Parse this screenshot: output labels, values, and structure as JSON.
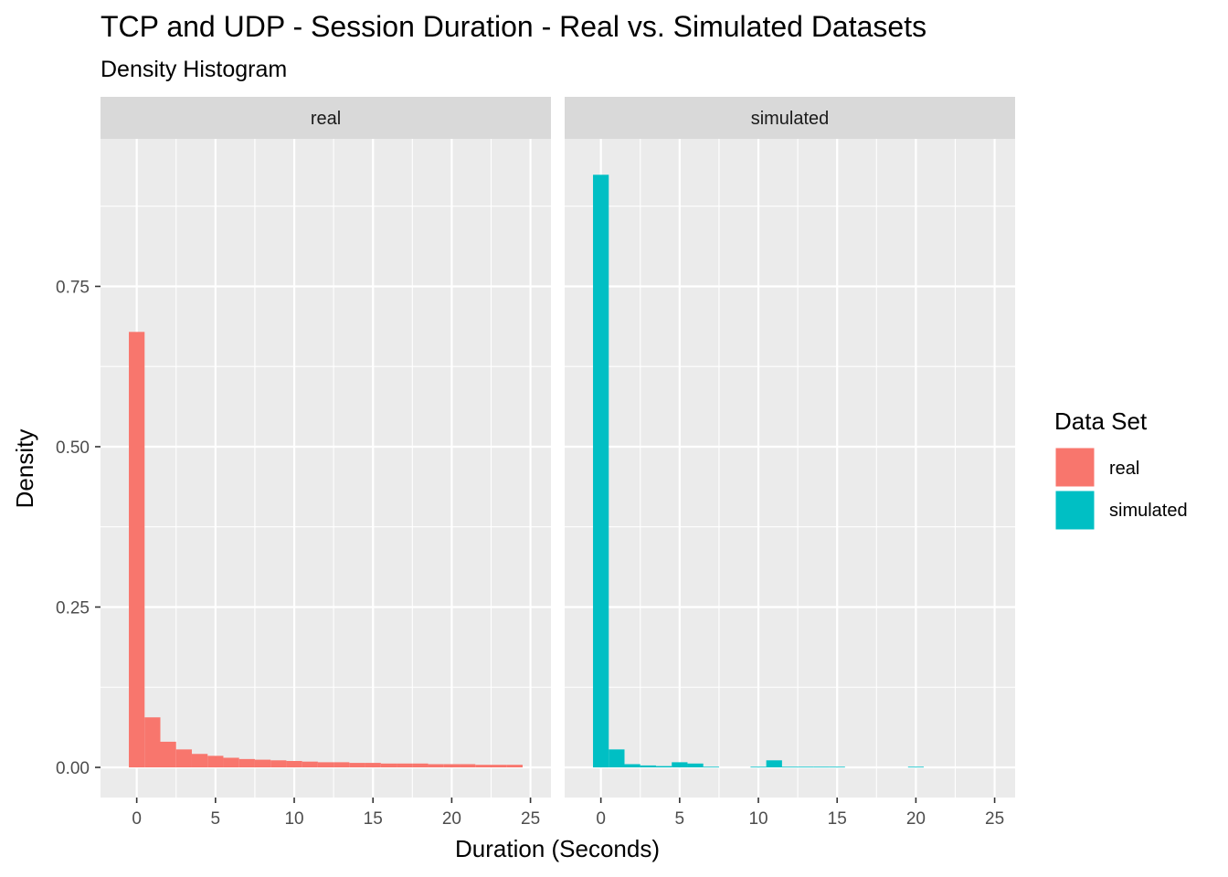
{
  "chart_data": {
    "type": "bar",
    "title": "TCP and UDP - Session Duration - Real vs. Simulated Datasets",
    "subtitle": "Density Histogram",
    "xlabel": "Duration (Seconds)",
    "ylabel": "Density",
    "xlim": [
      -2.3,
      26.3
    ],
    "ylim": [
      -0.047,
      0.98
    ],
    "x_ticks": [
      0,
      5,
      10,
      15,
      20,
      25
    ],
    "x_tick_labels": [
      "0",
      "5",
      "10",
      "15",
      "20",
      "25"
    ],
    "y_ticks": [
      0,
      0.25,
      0.5,
      0.75
    ],
    "y_tick_labels": [
      "0.00",
      "0.25",
      "0.50",
      "0.75"
    ],
    "bin_width": 1,
    "bin_centers": [
      0,
      1,
      2,
      3,
      4,
      5,
      6,
      7,
      8,
      9,
      10,
      11,
      12,
      13,
      14,
      15,
      16,
      17,
      18,
      19,
      20,
      21,
      22,
      23,
      24
    ],
    "facets": [
      {
        "label": "real",
        "color": "#F8766D",
        "values": [
          0.679,
          0.078,
          0.04,
          0.028,
          0.021,
          0.018,
          0.015,
          0.013,
          0.012,
          0.011,
          0.01,
          0.009,
          0.008,
          0.008,
          0.007,
          0.007,
          0.006,
          0.006,
          0.006,
          0.005,
          0.005,
          0.005,
          0.004,
          0.004,
          0.004
        ]
      },
      {
        "label": "simulated",
        "color": "#00BFC4",
        "values": [
          0.924,
          0.028,
          0.005,
          0.003,
          0.002,
          0.008,
          0.006,
          0.001,
          0,
          0,
          0.001,
          0.011,
          0.001,
          0.001,
          0.001,
          0.001,
          0,
          0,
          0,
          0,
          0.001,
          0,
          0,
          0,
          0
        ]
      }
    ],
    "legend": {
      "title": "Data Set",
      "position": "right",
      "items": [
        {
          "label": "real",
          "color": "#F8766D"
        },
        {
          "label": "simulated",
          "color": "#00BFC4"
        }
      ]
    },
    "grid": true,
    "panel_background": "#EBEBEB",
    "strip_background": "#D9D9D9"
  }
}
